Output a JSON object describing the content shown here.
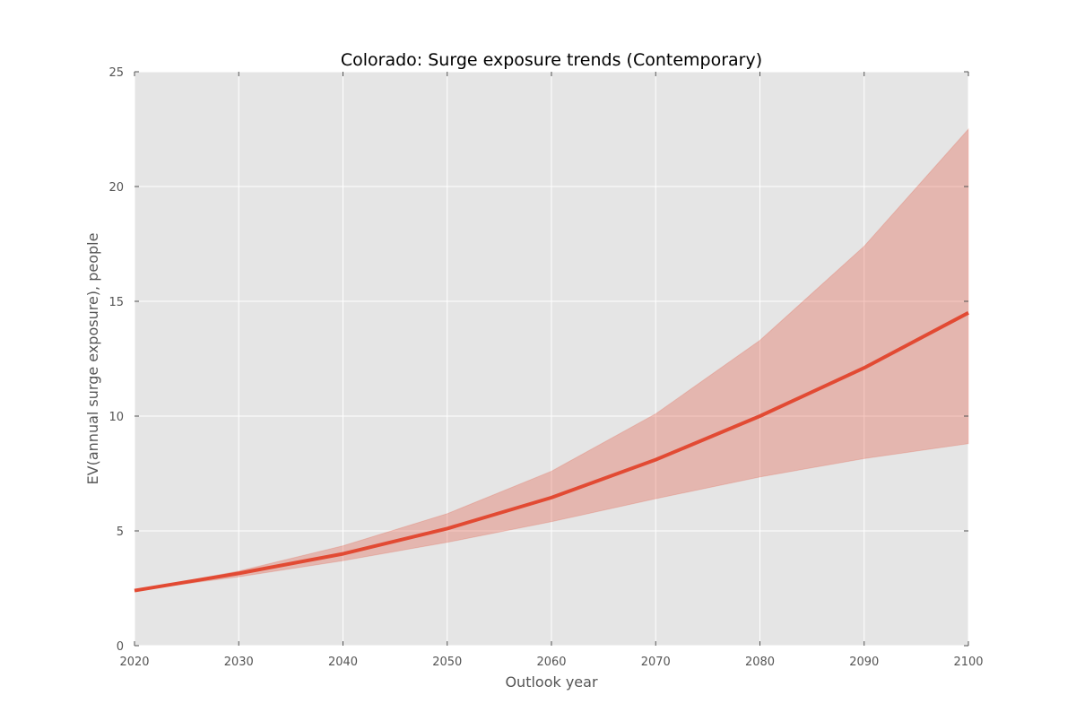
{
  "chart_data": {
    "type": "line",
    "title": "Colorado: Surge exposure trends (Contemporary)",
    "xlabel": "Outlook year",
    "ylabel": "EV(annual surge exposure), people",
    "xlim": [
      2020,
      2100
    ],
    "ylim": [
      0,
      25
    ],
    "x_ticks": [
      2020,
      2030,
      2040,
      2050,
      2060,
      2070,
      2080,
      2090,
      2100
    ],
    "y_ticks": [
      0,
      5,
      10,
      15,
      20,
      25
    ],
    "grid": true,
    "legend": "none",
    "x": [
      2020,
      2030,
      2040,
      2050,
      2060,
      2070,
      2080,
      2090,
      2100
    ],
    "series": [
      {
        "values": [
          2.4,
          3.15,
          4.0,
          5.1,
          6.45,
          8.1,
          10.0,
          12.1,
          14.5
        ],
        "lower": [
          2.4,
          3.0,
          3.7,
          4.5,
          5.4,
          6.4,
          7.35,
          8.15,
          8.8
        ],
        "upper": [
          2.4,
          3.25,
          4.35,
          5.75,
          7.6,
          10.1,
          13.3,
          17.4,
          22.5
        ],
        "color": "#e24a33",
        "band_color": "#e24a33"
      }
    ],
    "colors": {
      "plot_background": "#e5e5e5",
      "grid": "#ffffff",
      "line": "#e24a33",
      "band": "#e24a33"
    }
  }
}
